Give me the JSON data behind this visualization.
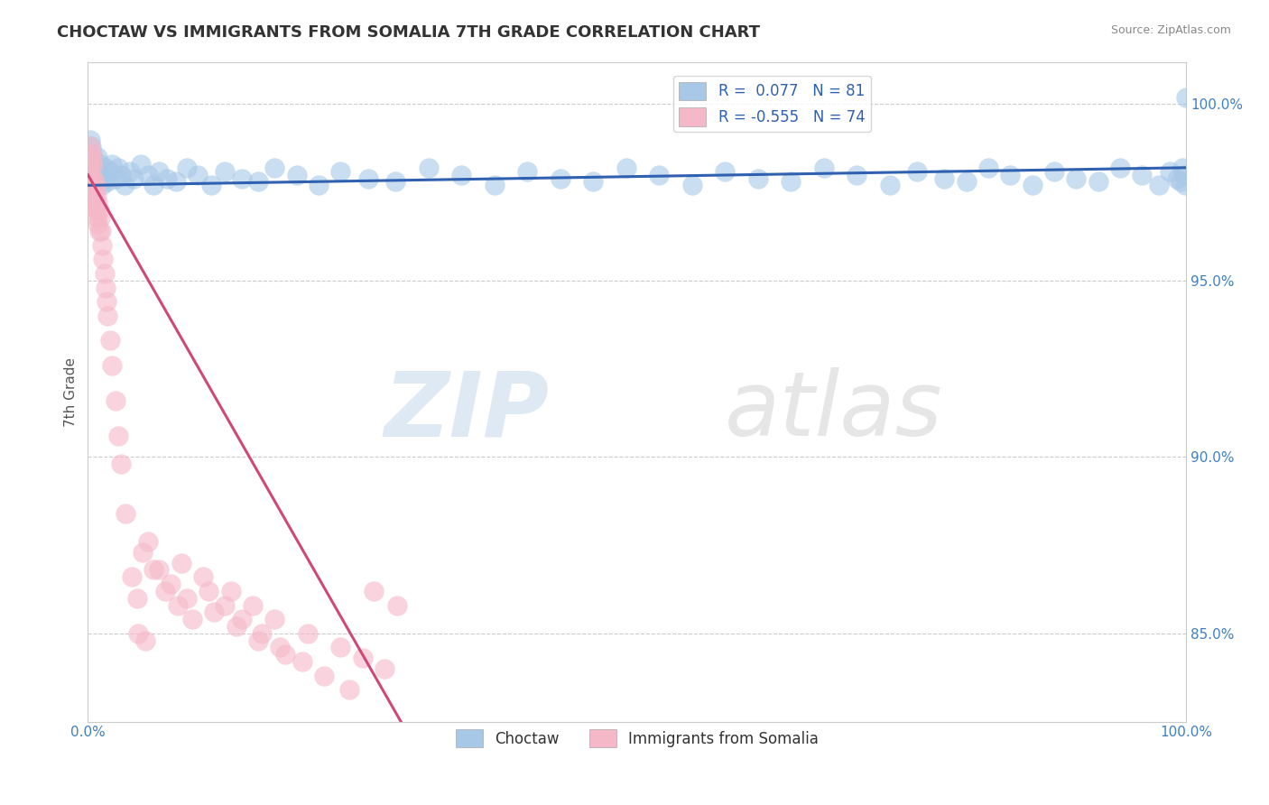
{
  "title": "CHOCTAW VS IMMIGRANTS FROM SOMALIA 7TH GRADE CORRELATION CHART",
  "source": "Source: ZipAtlas.com",
  "ylabel": "7th Grade",
  "watermark": "ZIPatlas",
  "blue_R": 0.077,
  "blue_N": 81,
  "pink_R": -0.555,
  "pink_N": 74,
  "blue_label": "Choctaw",
  "pink_label": "Immigrants from Somalia",
  "blue_color": "#a8c8e8",
  "pink_color": "#f5b8c8",
  "blue_line_color": "#3060b0",
  "pink_line_color": "#d04878",
  "xlim": [
    0,
    1.0
  ],
  "ylim": [
    0.825,
    1.012
  ],
  "yticks": [
    0.85,
    0.9,
    0.95,
    1.0
  ],
  "ytick_labels": [
    "85.0%",
    "90.0%",
    "95.0%",
    "100.0%"
  ],
  "blue_scatter_x": [
    0.002,
    0.002,
    0.003,
    0.003,
    0.004,
    0.004,
    0.005,
    0.005,
    0.006,
    0.006,
    0.007,
    0.008,
    0.009,
    0.01,
    0.011,
    0.012,
    0.013,
    0.014,
    0.015,
    0.016,
    0.018,
    0.02,
    0.022,
    0.025,
    0.028,
    0.03,
    0.033,
    0.038,
    0.042,
    0.048,
    0.055,
    0.06,
    0.065,
    0.072,
    0.08,
    0.09,
    0.1,
    0.112,
    0.125,
    0.14,
    0.155,
    0.17,
    0.19,
    0.21,
    0.23,
    0.255,
    0.28,
    0.31,
    0.34,
    0.37,
    0.4,
    0.43,
    0.46,
    0.49,
    0.52,
    0.55,
    0.58,
    0.61,
    0.64,
    0.67,
    0.7,
    0.73,
    0.755,
    0.78,
    0.8,
    0.82,
    0.84,
    0.86,
    0.88,
    0.9,
    0.92,
    0.94,
    0.96,
    0.975,
    0.985,
    0.992,
    0.995,
    0.997,
    0.998,
    0.999,
    1.0
  ],
  "blue_scatter_y": [
    0.99,
    0.985,
    0.988,
    0.982,
    0.986,
    0.98,
    0.984,
    0.979,
    0.981,
    0.978,
    0.983,
    0.98,
    0.985,
    0.979,
    0.983,
    0.98,
    0.977,
    0.981,
    0.979,
    0.982,
    0.978,
    0.981,
    0.983,
    0.979,
    0.982,
    0.98,
    0.977,
    0.981,
    0.979,
    0.983,
    0.98,
    0.977,
    0.981,
    0.979,
    0.978,
    0.982,
    0.98,
    0.977,
    0.981,
    0.979,
    0.978,
    0.982,
    0.98,
    0.977,
    0.981,
    0.979,
    0.978,
    0.982,
    0.98,
    0.977,
    0.981,
    0.979,
    0.978,
    0.982,
    0.98,
    0.977,
    0.981,
    0.979,
    0.978,
    0.982,
    0.98,
    0.977,
    0.981,
    0.979,
    0.978,
    0.982,
    0.98,
    0.977,
    0.981,
    0.979,
    0.978,
    0.982,
    0.98,
    0.977,
    0.981,
    0.979,
    0.978,
    0.982,
    0.98,
    0.977,
    1.002
  ],
  "pink_scatter_x": [
    0.001,
    0.001,
    0.002,
    0.002,
    0.002,
    0.003,
    0.003,
    0.003,
    0.004,
    0.004,
    0.004,
    0.005,
    0.005,
    0.005,
    0.006,
    0.006,
    0.007,
    0.007,
    0.008,
    0.008,
    0.009,
    0.009,
    0.01,
    0.01,
    0.011,
    0.012,
    0.013,
    0.014,
    0.015,
    0.016,
    0.017,
    0.018,
    0.02,
    0.022,
    0.025,
    0.028,
    0.03,
    0.034,
    0.04,
    0.046,
    0.052,
    0.06,
    0.07,
    0.082,
    0.095,
    0.11,
    0.125,
    0.14,
    0.158,
    0.175,
    0.195,
    0.215,
    0.238,
    0.26,
    0.282,
    0.05,
    0.045,
    0.085,
    0.105,
    0.13,
    0.15,
    0.17,
    0.2,
    0.23,
    0.25,
    0.27,
    0.055,
    0.065,
    0.075,
    0.09,
    0.115,
    0.135,
    0.155,
    0.18
  ],
  "pink_scatter_y": [
    0.984,
    0.978,
    0.982,
    0.976,
    0.988,
    0.98,
    0.974,
    0.986,
    0.979,
    0.973,
    0.985,
    0.977,
    0.983,
    0.971,
    0.978,
    0.972,
    0.976,
    0.97,
    0.974,
    0.968,
    0.972,
    0.966,
    0.97,
    0.964,
    0.968,
    0.964,
    0.96,
    0.956,
    0.952,
    0.948,
    0.944,
    0.94,
    0.933,
    0.926,
    0.916,
    0.906,
    0.898,
    0.884,
    0.866,
    0.85,
    0.848,
    0.868,
    0.862,
    0.858,
    0.854,
    0.862,
    0.858,
    0.854,
    0.85,
    0.846,
    0.842,
    0.838,
    0.834,
    0.862,
    0.858,
    0.873,
    0.86,
    0.87,
    0.866,
    0.862,
    0.858,
    0.854,
    0.85,
    0.846,
    0.843,
    0.84,
    0.876,
    0.868,
    0.864,
    0.86,
    0.856,
    0.852,
    0.848,
    0.844
  ],
  "blue_line_x0": 0.0,
  "blue_line_x1": 1.0,
  "blue_line_y0": 0.977,
  "blue_line_y1": 0.982,
  "pink_line_x0": 0.0,
  "pink_line_x1": 0.285,
  "pink_line_y0": 0.98,
  "pink_line_y1": 0.825
}
